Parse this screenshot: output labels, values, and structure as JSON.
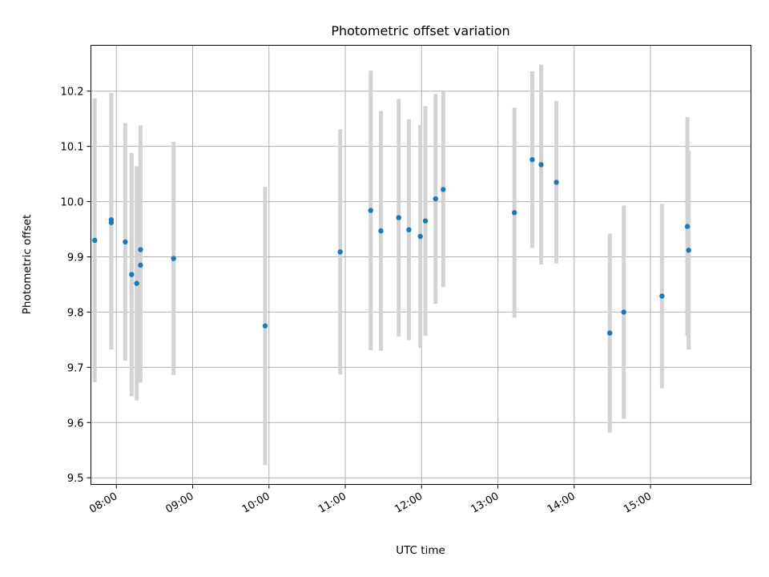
{
  "chart_data": {
    "type": "scatter",
    "title": "Photometric offset variation",
    "xlabel": "UTC time",
    "ylabel": "Photometric offset",
    "x_is_time": true,
    "xlim": [
      "07:40",
      "16:19"
    ],
    "ylim": [
      9.488,
      10.283
    ],
    "x_ticks": [
      "08:00",
      "09:00",
      "10:00",
      "11:00",
      "12:00",
      "13:00",
      "14:00",
      "15:00"
    ],
    "y_ticks": [
      9.5,
      9.6,
      9.7,
      9.8,
      9.9,
      10.0,
      10.1,
      10.2
    ],
    "grid": true,
    "point_color": "#1f77b4",
    "errorbar_color": "#d3d3d3",
    "series": [
      {
        "points": [
          {
            "x": "07:43",
            "y": 9.93,
            "yerr": 0.257
          },
          {
            "x": "07:56",
            "y": 9.967,
            "yerr": 0.23
          },
          {
            "x": "07:56",
            "y": 9.962,
            "yerr": 0.23
          },
          {
            "x": "08:07",
            "y": 9.927,
            "yerr": 0.215
          },
          {
            "x": "08:12",
            "y": 9.868,
            "yerr": 0.22
          },
          {
            "x": "08:16",
            "y": 9.852,
            "yerr": 0.212
          },
          {
            "x": "08:19",
            "y": 9.885,
            "yerr": 0.213
          },
          {
            "x": "08:19",
            "y": 9.913,
            "yerr": 0.225
          },
          {
            "x": "08:45",
            "y": 9.897,
            "yerr": 0.211
          },
          {
            "x": "09:57",
            "y": 9.775,
            "yerr": 0.252
          },
          {
            "x": "10:56",
            "y": 9.909,
            "yerr": 0.222
          },
          {
            "x": "11:20",
            "y": 9.984,
            "yerr": 0.253
          },
          {
            "x": "11:28",
            "y": 9.947,
            "yerr": 0.217
          },
          {
            "x": "11:42",
            "y": 9.971,
            "yerr": 0.215
          },
          {
            "x": "11:50",
            "y": 9.949,
            "yerr": 0.2
          },
          {
            "x": "11:59",
            "y": 9.937,
            "yerr": 0.202
          },
          {
            "x": "12:03",
            "y": 9.965,
            "yerr": 0.208
          },
          {
            "x": "12:11",
            "y": 10.005,
            "yerr": 0.19
          },
          {
            "x": "12:17",
            "y": 10.022,
            "yerr": 0.177
          },
          {
            "x": "13:13",
            "y": 9.98,
            "yerr": 0.19
          },
          {
            "x": "13:27",
            "y": 10.076,
            "yerr": 0.16
          },
          {
            "x": "13:34",
            "y": 10.067,
            "yerr": 0.181
          },
          {
            "x": "13:46",
            "y": 10.035,
            "yerr": 0.147
          },
          {
            "x": "14:28",
            "y": 9.762,
            "yerr": 0.18
          },
          {
            "x": "14:39",
            "y": 9.8,
            "yerr": 0.193
          },
          {
            "x": "15:09",
            "y": 9.829,
            "yerr": 0.167
          },
          {
            "x": "15:29",
            "y": 9.955,
            "yerr": 0.198
          },
          {
            "x": "15:30",
            "y": 9.912,
            "yerr": 0.18
          }
        ]
      }
    ]
  }
}
